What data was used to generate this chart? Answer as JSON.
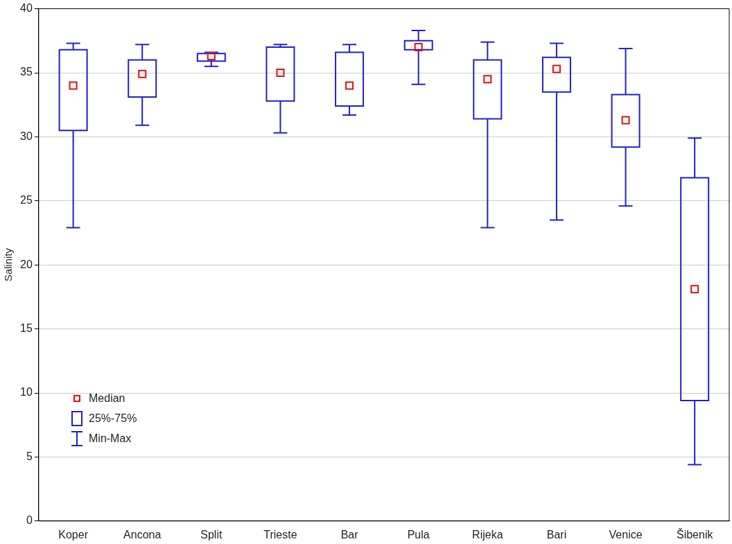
{
  "chart_data": {
    "type": "box",
    "ylabel": "Salinity",
    "categories": [
      "Koper",
      "Ancona",
      "Split",
      "Trieste",
      "Bar",
      "Pula",
      "Rijeka",
      "Bari",
      "Venice",
      "Šibenik"
    ],
    "series": [
      {
        "color": "#2020c8",
        "boxes": [
          {
            "low": 22.9,
            "q1": 30.5,
            "median": 34.0,
            "q3": 36.8,
            "high": 37.3
          },
          {
            "low": 30.9,
            "q1": 33.1,
            "median": 34.9,
            "q3": 36.0,
            "high": 37.2
          },
          {
            "low": 35.5,
            "q1": 35.9,
            "median": 36.3,
            "q3": 36.5,
            "high": 36.6
          },
          {
            "low": 30.3,
            "q1": 32.8,
            "median": 35.0,
            "q3": 37.0,
            "high": 37.2
          },
          {
            "low": 31.7,
            "q1": 32.4,
            "median": 34.0,
            "q3": 36.6,
            "high": 37.2
          },
          {
            "low": 34.1,
            "q1": 36.8,
            "median": 37.0,
            "q3": 37.5,
            "high": 38.3
          },
          {
            "low": 22.9,
            "q1": 31.4,
            "median": 34.5,
            "q3": 36.0,
            "high": 37.4
          },
          {
            "low": 23.5,
            "q1": 33.5,
            "median": 35.3,
            "q3": 36.2,
            "high": 37.3
          },
          {
            "low": 24.6,
            "q1": 29.2,
            "median": 31.3,
            "q3": 33.3,
            "high": 36.9
          },
          {
            "low": 4.4,
            "q1": 9.4,
            "median": 18.1,
            "q3": 26.8,
            "high": 29.9
          }
        ]
      }
    ],
    "ylim": [
      0,
      40
    ],
    "yticks": [
      0,
      5,
      10,
      15,
      20,
      25,
      30,
      35,
      40
    ],
    "grid": "y",
    "annotations": [
      "Median",
      "25%-75%",
      "Min-Max"
    ]
  }
}
